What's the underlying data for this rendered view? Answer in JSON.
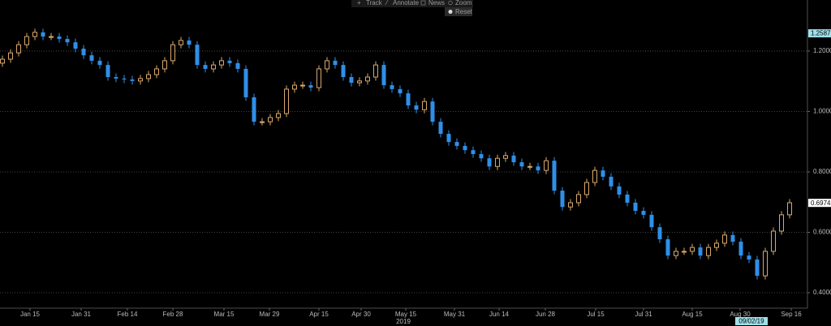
{
  "toolbar": [
    "Track",
    "Annotate",
    "News",
    "Zoom"
  ],
  "reset_button": "Reset",
  "chart_data": {
    "type": "candlestick",
    "open": [
      1.16,
      1.173,
      1.194,
      1.221,
      1.248,
      1.262,
      1.248,
      1.248,
      1.24,
      1.229,
      1.208,
      1.186,
      1.168,
      1.154,
      1.114,
      1.109,
      1.106,
      1.101,
      1.109,
      1.122,
      1.141,
      1.168,
      1.221,
      1.235,
      1.221,
      1.154,
      1.141,
      1.154,
      1.168,
      1.16,
      1.141,
      1.047,
      0.966,
      0.966,
      0.98,
      0.993,
      1.074,
      1.087,
      1.087,
      1.079,
      1.141,
      1.168,
      1.154,
      1.114,
      1.095,
      1.101,
      1.114,
      1.154,
      1.087,
      1.074,
      1.06,
      1.02,
      1.006,
      1.033,
      0.966,
      0.926,
      0.899,
      0.886,
      0.872,
      0.859,
      0.845,
      0.818,
      0.845,
      0.854,
      0.832,
      0.818,
      0.818,
      0.805,
      0.837,
      0.738,
      0.684,
      0.698,
      0.725,
      0.765,
      0.805,
      0.784,
      0.752,
      0.725,
      0.698,
      0.671,
      0.658,
      0.617,
      0.577,
      0.523,
      0.537,
      0.537,
      0.55,
      0.523,
      0.55,
      0.564,
      0.591,
      0.569,
      0.523,
      0.51,
      0.456,
      0.537,
      0.604,
      0.658
    ],
    "high": [
      1.185,
      1.206,
      1.233,
      1.26,
      1.274,
      1.274,
      1.26,
      1.26,
      1.252,
      1.241,
      1.22,
      1.198,
      1.18,
      1.166,
      1.126,
      1.121,
      1.118,
      1.121,
      1.134,
      1.153,
      1.18,
      1.233,
      1.247,
      1.247,
      1.233,
      1.166,
      1.166,
      1.18,
      1.18,
      1.172,
      1.153,
      1.059,
      0.978,
      0.992,
      1.005,
      1.086,
      1.099,
      1.099,
      1.099,
      1.153,
      1.18,
      1.18,
      1.166,
      1.126,
      1.113,
      1.126,
      1.166,
      1.166,
      1.099,
      1.086,
      1.072,
      1.032,
      1.045,
      1.045,
      0.978,
      0.938,
      0.911,
      0.898,
      0.884,
      0.871,
      0.857,
      0.857,
      0.866,
      0.866,
      0.844,
      0.83,
      0.83,
      0.849,
      0.849,
      0.75,
      0.71,
      0.737,
      0.777,
      0.817,
      0.817,
      0.796,
      0.764,
      0.737,
      0.71,
      0.683,
      0.67,
      0.629,
      0.589,
      0.549,
      0.549,
      0.562,
      0.562,
      0.562,
      0.576,
      0.603,
      0.603,
      0.581,
      0.535,
      0.522,
      0.549,
      0.616,
      0.67,
      0.71
    ],
    "low": [
      1.148,
      1.161,
      1.182,
      1.209,
      1.236,
      1.236,
      1.236,
      1.228,
      1.217,
      1.196,
      1.174,
      1.156,
      1.142,
      1.102,
      1.097,
      1.094,
      1.089,
      1.089,
      1.097,
      1.11,
      1.129,
      1.156,
      1.209,
      1.209,
      1.142,
      1.129,
      1.129,
      1.142,
      1.148,
      1.129,
      1.035,
      0.954,
      0.954,
      0.954,
      0.968,
      0.981,
      1.062,
      1.075,
      1.067,
      1.067,
      1.129,
      1.142,
      1.102,
      1.083,
      1.083,
      1.089,
      1.102,
      1.075,
      1.062,
      1.048,
      1.008,
      0.994,
      0.994,
      0.954,
      0.914,
      0.887,
      0.874,
      0.86,
      0.847,
      0.833,
      0.806,
      0.806,
      0.833,
      0.82,
      0.806,
      0.806,
      0.793,
      0.793,
      0.726,
      0.672,
      0.672,
      0.686,
      0.713,
      0.753,
      0.772,
      0.74,
      0.713,
      0.686,
      0.659,
      0.646,
      0.605,
      0.565,
      0.511,
      0.511,
      0.525,
      0.525,
      0.511,
      0.511,
      0.538,
      0.552,
      0.557,
      0.511,
      0.498,
      0.444,
      0.444,
      0.525,
      0.592,
      0.646
    ],
    "close": [
      1.173,
      1.194,
      1.221,
      1.248,
      1.262,
      1.248,
      1.248,
      1.24,
      1.229,
      1.208,
      1.186,
      1.168,
      1.154,
      1.114,
      1.109,
      1.106,
      1.101,
      1.109,
      1.122,
      1.141,
      1.168,
      1.221,
      1.235,
      1.221,
      1.154,
      1.141,
      1.154,
      1.168,
      1.16,
      1.141,
      1.047,
      0.966,
      0.966,
      0.98,
      0.993,
      1.074,
      1.087,
      1.087,
      1.079,
      1.141,
      1.168,
      1.154,
      1.114,
      1.095,
      1.101,
      1.114,
      1.154,
      1.087,
      1.074,
      1.06,
      1.02,
      1.006,
      1.033,
      0.966,
      0.926,
      0.899,
      0.886,
      0.872,
      0.859,
      0.845,
      0.818,
      0.845,
      0.854,
      0.832,
      0.818,
      0.818,
      0.805,
      0.837,
      0.738,
      0.684,
      0.698,
      0.725,
      0.765,
      0.805,
      0.784,
      0.752,
      0.725,
      0.698,
      0.671,
      0.658,
      0.617,
      0.577,
      0.523,
      0.537,
      0.537,
      0.55,
      0.523,
      0.55,
      0.564,
      0.591,
      0.569,
      0.523,
      0.51,
      0.456,
      0.537,
      0.604,
      0.658,
      0.698
    ],
    "up_color": "#d9a86c",
    "down_color": "#2f8fe8",
    "xlim": [
      -0.3,
      99.2
    ],
    "xticks": [
      {
        "value": 3.4,
        "label": "Jan 15"
      },
      {
        "value": 9.7,
        "label": "Jan 31"
      },
      {
        "value": 15.4,
        "label": "Feb 14"
      },
      {
        "value": 21,
        "label": "Feb 28"
      },
      {
        "value": 27.3,
        "label": "Mar 15"
      },
      {
        "value": 32.9,
        "label": "Mar 29"
      },
      {
        "value": 39,
        "label": "Apr 15"
      },
      {
        "value": 44.2,
        "label": "Apr 30"
      },
      {
        "value": 49.7,
        "label": "May 15"
      },
      {
        "value": 55.7,
        "label": "May 31"
      },
      {
        "value": 61.2,
        "label": "Jun 14"
      },
      {
        "value": 66.9,
        "label": "Jun 28"
      },
      {
        "value": 73.1,
        "label": "Jul 15"
      },
      {
        "value": 79,
        "label": "Jul 31"
      },
      {
        "value": 85,
        "label": "Aug 15"
      },
      {
        "value": 90.9,
        "label": "Aug 30"
      },
      {
        "value": 97.2,
        "label": "Sep 16"
      }
    ],
    "x_axis_year": "2019",
    "crosshair_date": "09/02/19",
    "ylim": [
      0.349,
      1.369
    ],
    "yticks": [
      {
        "value": 0.4,
        "label": "0.4000"
      },
      {
        "value": 0.6,
        "label": "0.6000"
      },
      {
        "value": 0.8,
        "label": "0.8000"
      },
      {
        "value": 1.0,
        "label": "1.0000"
      },
      {
        "value": 1.2,
        "label": "1.2000"
      }
    ],
    "price_labels": [
      {
        "value": 1.2587,
        "label": "1.2587",
        "color": "#9fe0ea"
      },
      {
        "value": 0.6974,
        "label": "0.6974",
        "color": "#ffffff"
      }
    ],
    "grid": true
  }
}
